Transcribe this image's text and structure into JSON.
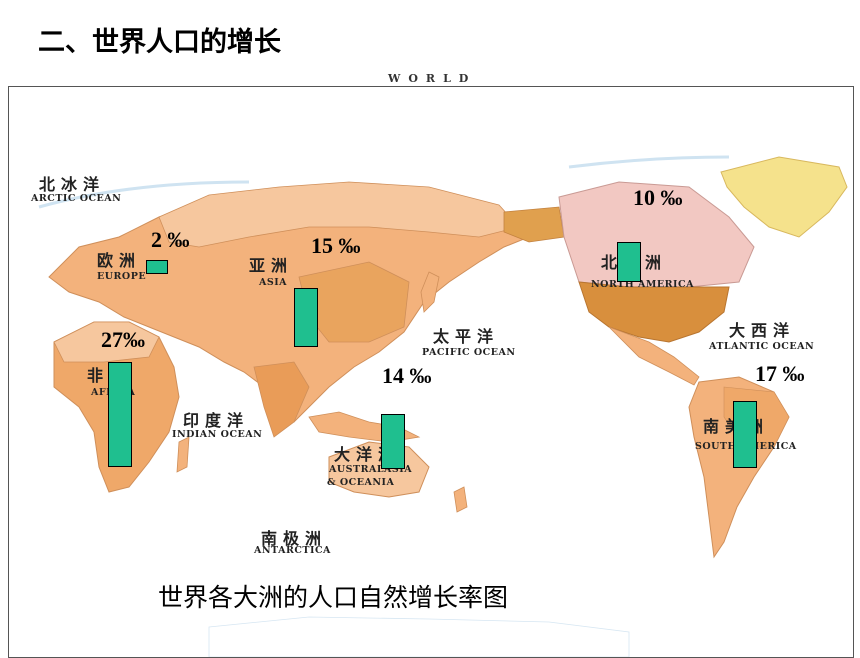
{
  "heading": "二、世界人口的增长",
  "map_title": "WORLD",
  "caption": "世界各大洲的人口自然增长率图",
  "oceans": {
    "arctic_cn": "北冰洋",
    "arctic_en": "ARCTIC OCEAN",
    "pacific_cn": "太平洋",
    "pacific_en": "PACIFIC OCEAN",
    "indian_cn": "印度洋",
    "indian_en": "INDIAN OCEAN",
    "atlantic_cn": "大西洋",
    "atlantic_en": "ATLANTIC OCEAN"
  },
  "continents": {
    "europe_cn": "欧洲",
    "europe_en": "EUROPE",
    "asia_cn": "亚洲",
    "asia_en": "ASIA",
    "africa_cn": "非洲",
    "africa_en": "AFRICA",
    "australia_cn": "大洋洲",
    "australia_en1": "AUSTRALASIA",
    "australia_en2": "& OCEANIA",
    "na_cn": "北美洲",
    "na_en": "NORTH AMERICA",
    "sa_cn": "南美洲",
    "sa_en": "SOUTH AMERICA",
    "antarctica_cn": "南极洲",
    "antarctica_en": "ANTARCTICA"
  },
  "rates": {
    "europe": "2 ‰",
    "asia": "15 ‰",
    "africa": "27‰",
    "australia": "14 ‰",
    "north_america": "10 ‰",
    "south_america": "17 ‰"
  },
  "chart_data": {
    "type": "bar",
    "categories": [
      "欧洲",
      "亚洲",
      "非洲",
      "大洋洲",
      "北美洲",
      "南美洲"
    ],
    "values": [
      2,
      15,
      27,
      14,
      10,
      17
    ],
    "unit": "‰",
    "bar_color": "#1fbf8f"
  }
}
